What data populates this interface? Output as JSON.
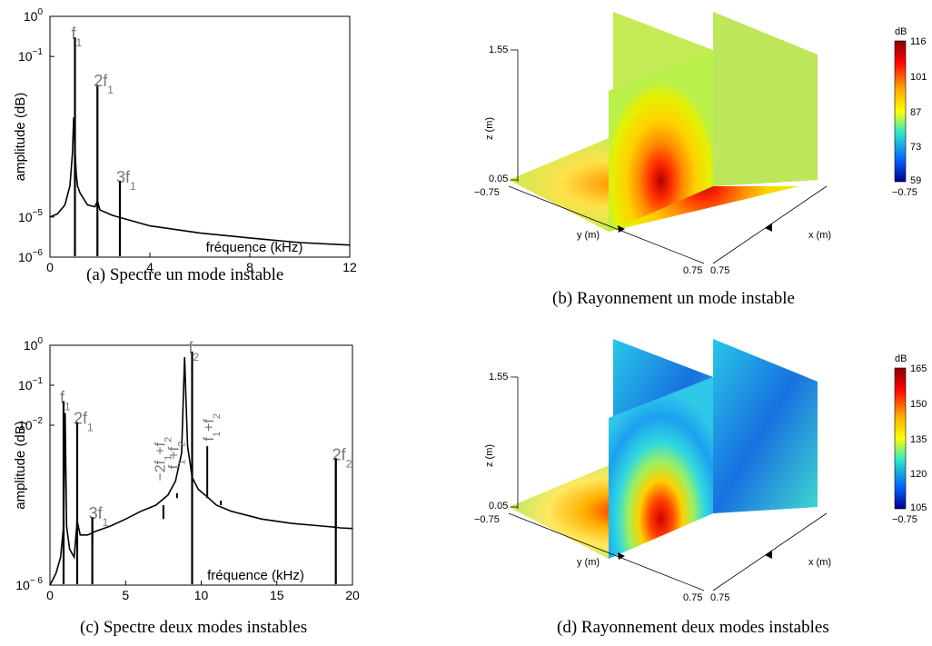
{
  "captions": {
    "a": "(a)  Spectre un mode instable",
    "b": "(b)  Rayonnement un mode instable",
    "c": "(c)  Spectre deux modes instables",
    "d": "(d)  Rayonnement deux modes instables"
  },
  "chart_data": [
    {
      "id": "a",
      "type": "line",
      "xlabel": "fréquence (kHz)",
      "ylabel": "amplitude (dB)",
      "x_scale": "linear",
      "y_scale": "log",
      "xlim": [
        0,
        12
      ],
      "ylim": [
        1e-06,
        1
      ],
      "x_ticks": [
        {
          "v": 0,
          "label": "0"
        },
        {
          "v": 4,
          "label": "4"
        },
        {
          "v": 8,
          "label": "8"
        },
        {
          "v": 12,
          "label": "12"
        }
      ],
      "y_ticks": [
        {
          "v": 1,
          "base": "10",
          "exp": "0"
        },
        {
          "v": 0.1,
          "base": "10",
          "exp": "−1"
        },
        {
          "v": 1e-05,
          "base": "10",
          "exp": "−5"
        },
        {
          "v": 1e-06,
          "base": "10",
          "exp": "−6"
        }
      ],
      "spectrum": {
        "x": [
          0,
          0.3,
          0.6,
          0.8,
          0.9,
          0.95,
          1.0,
          1.05,
          1.1,
          1.2,
          1.5,
          1.8,
          1.9,
          2.0,
          2.5,
          3,
          4,
          6,
          8,
          10,
          12
        ],
        "y": [
          1e-05,
          1.2e-05,
          2e-05,
          6e-05,
          0.0004,
          0.003,
          0.0005,
          0.00012,
          6e-05,
          4e-05,
          2e-05,
          1.8e-05,
          2.5e-05,
          1.5e-05,
          1.1e-05,
          9e-06,
          6e-06,
          4e-06,
          3e-06,
          2.3e-06,
          2e-06
        ]
      },
      "peaks": [
        {
          "x": 1.0,
          "y": 0.3,
          "label": "f",
          "sub": "1"
        },
        {
          "x": 1.9,
          "y": 0.02,
          "label": "2f",
          "sub": "1"
        },
        {
          "x": 2.8,
          "y": 8e-05,
          "label": "3f",
          "sub": "1"
        }
      ],
      "spikes": [
        {
          "x": 2.8,
          "y0": 2.5e-06,
          "y1": 8e-05
        }
      ]
    },
    {
      "id": "c",
      "type": "line",
      "xlabel": "fréquence (kHz)",
      "ylabel": "amplitude (dB)",
      "x_scale": "linear",
      "y_scale": "log",
      "xlim": [
        0,
        20
      ],
      "ylim": [
        1e-06,
        1
      ],
      "x_ticks": [
        {
          "v": 0,
          "label": "0"
        },
        {
          "v": 5,
          "label": "5"
        },
        {
          "v": 10,
          "label": "10"
        },
        {
          "v": 15,
          "label": "15"
        },
        {
          "v": 20,
          "label": "20"
        }
      ],
      "y_ticks": [
        {
          "v": 1,
          "base": "10",
          "exp": "0"
        },
        {
          "v": 0.1,
          "base": "10",
          "exp": "−1"
        },
        {
          "v": 0.01,
          "base": "10",
          "exp": "−2"
        },
        {
          "v": 1e-06,
          "base": "10",
          "exp": "− 6"
        }
      ],
      "spectrum": {
        "x": [
          0,
          0.4,
          0.7,
          0.9,
          1.0,
          1.1,
          1.3,
          1.6,
          1.8,
          2.0,
          2.5,
          3,
          4,
          5,
          6,
          7,
          7.8,
          8.3,
          8.7,
          8.9,
          9.1,
          9.4,
          9.8,
          10.5,
          11,
          12,
          14,
          16,
          18,
          18.9,
          19.2,
          20
        ],
        "y": [
          1e-06,
          2e-06,
          5e-06,
          3e-05,
          0.02,
          3e-05,
          8e-06,
          5e-06,
          4e-05,
          1.8e-05,
          1.8e-05,
          2.2e-05,
          3e-05,
          4.5e-05,
          7e-05,
          0.0001,
          0.00018,
          0.0004,
          0.002,
          0.5,
          0.003,
          0.0005,
          0.00025,
          0.00015,
          0.0001,
          7e-05,
          4.5e-05,
          3.5e-05,
          3e-05,
          2.8e-05,
          2.7e-05,
          2.6e-05
        ]
      },
      "peaks": [
        {
          "x": 0.9,
          "y": 0.04,
          "label": "f",
          "sub": "1"
        },
        {
          "x": 1.8,
          "y": 0.012,
          "label": "2f",
          "sub": "1"
        },
        {
          "x": 2.8,
          "y": 5e-05,
          "label": "3f",
          "sub": "1"
        },
        {
          "x": 9.4,
          "y": 0.7,
          "label": "f",
          "sub": "2"
        },
        {
          "x": 18.9,
          "y": 0.0015,
          "label": "2f",
          "sub": "2"
        }
      ],
      "rotated_labels": [
        {
          "x": 7.6,
          "y": 0.0004,
          "text": "−2f",
          "sub": "1",
          "text2": "+f",
          "sub2": "2"
        },
        {
          "x": 8.5,
          "y": 0.0008,
          "text": "f",
          "sub": "1",
          "text2": "+f",
          "sub2": "2"
        },
        {
          "x": 10.8,
          "y": 0.004,
          "text": "f",
          "sub": "1",
          "text2": "+f",
          "sub2": "2"
        }
      ],
      "spikes": [
        {
          "x": 1.8,
          "y0": 2e-05,
          "y1": 0.012
        },
        {
          "x": 2.8,
          "y0": 1.2e-05,
          "y1": 5e-05
        },
        {
          "x": 7.5,
          "y0": 4.5e-05,
          "y1": 0.0001
        },
        {
          "x": 8.4,
          "y0": 0.00015,
          "y1": 0.0002
        },
        {
          "x": 10.4,
          "y0": 0.00015,
          "y1": 0.003
        },
        {
          "x": 11.3,
          "y0": 0.0001,
          "y1": 0.00013
        },
        {
          "x": 18.9,
          "y0": 2.8e-05,
          "y1": 0.0015
        }
      ]
    },
    {
      "id": "b",
      "type": "heatmap",
      "zlabel": "z (m)",
      "xlabel": "x (m)",
      "ylabel": "y (m)",
      "z_ticks": [
        "1.55",
        "0.05"
      ],
      "xy_ticks": [
        "−0.75",
        "0.75",
        "0.75",
        "−0.75"
      ],
      "colorbar": {
        "unit": "dB",
        "ticks": [
          "116",
          "101",
          "87",
          "73",
          "59"
        ]
      }
    },
    {
      "id": "d",
      "type": "heatmap",
      "zlabel": "z (m)",
      "xlabel": "x (m)",
      "ylabel": "y (m)",
      "z_ticks": [
        "1.55",
        "0.05"
      ],
      "xy_ticks": [
        "−0.75",
        "0.75",
        "0.75",
        "−0.75"
      ],
      "colorbar": {
        "unit": "dB",
        "ticks": [
          "165",
          "150",
          "135",
          "120",
          "105"
        ]
      }
    }
  ]
}
